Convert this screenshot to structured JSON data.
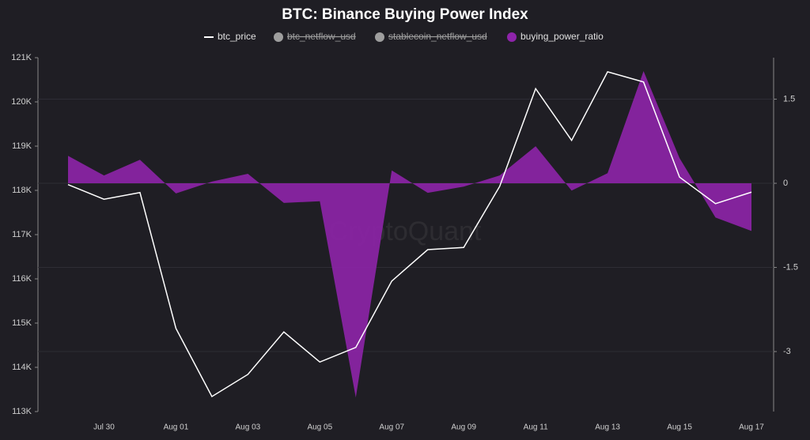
{
  "chart_data": {
    "type": "line-area",
    "title": "BTC: Binance Buying Power Index",
    "watermark": "CryptoQuant",
    "categories": [
      null,
      "Jul 30",
      null,
      "Aug 01",
      null,
      "Aug 03",
      null,
      "Aug 05",
      null,
      "Aug 07",
      null,
      "Aug 09",
      null,
      "Aug 11",
      null,
      "Aug 13",
      null,
      "Aug 15",
      null,
      "Aug 17"
    ],
    "series": [
      {
        "name": "btc_price",
        "color": "#ffffff",
        "kind": "line",
        "values": [
          118130,
          117800,
          117950,
          114880,
          113340,
          113840,
          114800,
          114120,
          114450,
          115950,
          116660,
          116710,
          118090,
          120300,
          119130,
          120680,
          120450,
          118300,
          117700,
          117960
        ]
      },
      {
        "name": "btc_netflow_usd",
        "color": "#9e9e9e",
        "hidden": true
      },
      {
        "name": "stablecoin_netflow_usd",
        "color": "#9e9e9e",
        "hidden": true
      },
      {
        "name": "buying_power_ratio",
        "color": "#8e24aa",
        "kind": "area",
        "axis": "y2",
        "values": [
          0.49,
          0.14,
          0.42,
          -0.18,
          0.03,
          0.17,
          -0.35,
          -0.32,
          -3.82,
          0.23,
          -0.17,
          -0.06,
          0.14,
          0.66,
          -0.13,
          0.18,
          2.0,
          0.45,
          -0.61,
          -0.85
        ]
      }
    ],
    "ylim": [
      113000,
      121000
    ],
    "yticks": [
      {
        "value": 113000,
        "label": "113K"
      },
      {
        "value": 114000,
        "label": "114K"
      },
      {
        "value": 115000,
        "label": "115K"
      },
      {
        "value": 116000,
        "label": "116K"
      },
      {
        "value": 117000,
        "label": "117K"
      },
      {
        "value": 118000,
        "label": "118K"
      },
      {
        "value": 119000,
        "label": "119K"
      },
      {
        "value": 120000,
        "label": "120K"
      },
      {
        "value": 121000,
        "label": "121K"
      }
    ],
    "y2lim": [
      -4.07,
      2.24
    ],
    "y2ticks": [
      -3,
      -1.5,
      0,
      1.5
    ],
    "grid": "y2"
  }
}
